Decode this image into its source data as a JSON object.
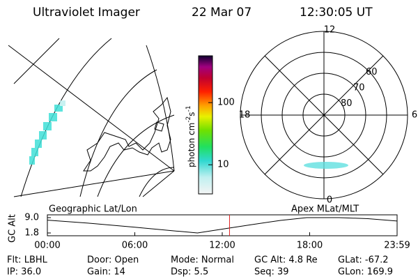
{
  "header": {
    "instrument": "Ultraviolet Imager",
    "date": "22 Mar 07",
    "time": "12:30:05 UT"
  },
  "colorbar": {
    "label_parts": [
      "photon cm",
      "-2",
      "s",
      "-1"
    ],
    "scale": "log",
    "lim": [
      3.4,
      566
    ],
    "ticks": [
      10,
      100
    ]
  },
  "polar": {
    "mlt_labels": [
      {
        "value": 12,
        "label": "12"
      },
      {
        "value": 18,
        "label": "18"
      },
      {
        "value": 6,
        "label": "6"
      },
      {
        "value": 0,
        "label": "0"
      }
    ],
    "lat_labels": [
      60,
      70,
      80
    ]
  },
  "altitude_plot": {
    "left_title": "Geographic Lat/Lon",
    "right_title": "Apex MLat/MLT",
    "y_label": "GC Alt",
    "ylim": [
      1.8,
      9.0
    ],
    "yticks": [
      {
        "value": 9.0,
        "label": "9.0"
      },
      {
        "value": 1.8,
        "label": "1.8"
      }
    ],
    "xlim": [
      0,
      24
    ],
    "xticks": [
      {
        "value": 0,
        "label": "00:00"
      },
      {
        "value": 6,
        "label": "06:00"
      },
      {
        "value": 12,
        "label": "12:00"
      },
      {
        "value": 18,
        "label": "18:00"
      },
      {
        "value": 24,
        "label": "23:59"
      }
    ],
    "hours": [
      0,
      3,
      6,
      9,
      10.3,
      12,
      14,
      16,
      17.8,
      20,
      22,
      24
    ],
    "altitude": [
      7.8,
      6.3,
      4.5,
      2.6,
      1.8,
      3.6,
      5.7,
      7.7,
      9.0,
      9.0,
      8.5,
      7.4
    ],
    "current_hour": 12.5,
    "current_color": "#e02020"
  },
  "footer": {
    "rows": [
      [
        "Flt: LBHL",
        "Door: Open",
        "Mode: Normal",
        "GC Alt: 4.8 Re",
        "GLat: -67.2"
      ],
      [
        "IP: 36.0",
        "Gain: 14",
        "Dsp:    5.5",
        "Seq: 39",
        "GLon: 169.9"
      ]
    ]
  }
}
